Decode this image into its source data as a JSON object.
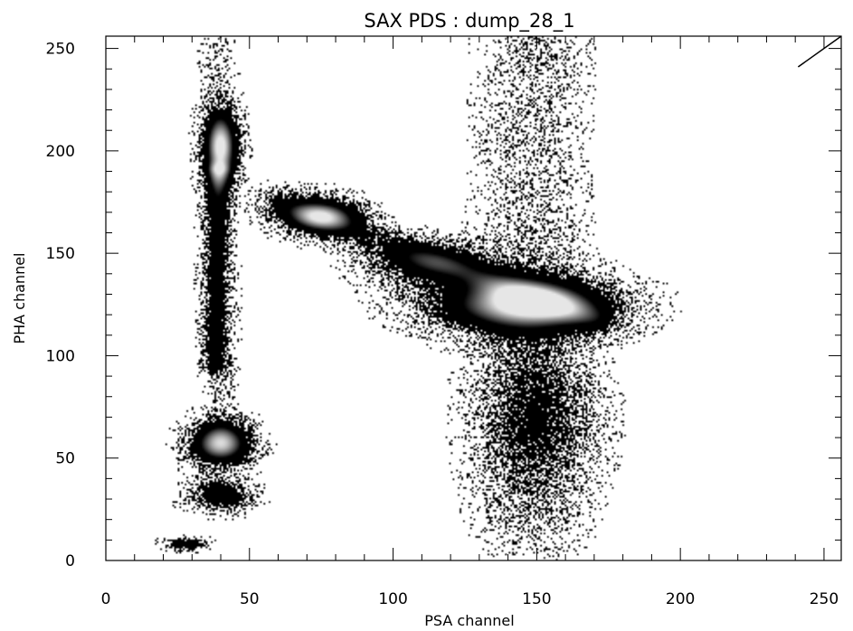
{
  "chart_data": {
    "type": "heatmap",
    "title": "SAX PDS : dump_28_1",
    "xlabel": "PSA channel",
    "ylabel": "PHA channel",
    "xlim": [
      0,
      256
    ],
    "ylim": [
      0,
      256
    ],
    "x_ticks": [
      0,
      50,
      100,
      150,
      200,
      250
    ],
    "y_ticks": [
      0,
      50,
      100,
      150,
      200,
      250
    ],
    "x_tick_labels": [
      "0",
      "50",
      "100",
      "150",
      "200",
      "250"
    ],
    "y_tick_labels": [
      "0",
      "50",
      "100",
      "150",
      "200",
      "250"
    ],
    "grid": false,
    "colormap": "density, white (low) to black to light grey (highest)",
    "density_clusters": [
      {
        "x": 40,
        "y": 202,
        "sx": 4,
        "sy": 12,
        "peak": 1.0
      },
      {
        "x": 40,
        "y": 57,
        "sx": 7,
        "sy": 7,
        "peak": 1.0
      },
      {
        "x": 40,
        "y": 32,
        "sx": 7,
        "sy": 5,
        "peak": 0.55
      },
      {
        "x": 28,
        "y": 8,
        "sx": 5,
        "sy": 2,
        "peak": 0.55
      },
      {
        "x": 75,
        "y": 168,
        "sx": 9,
        "sy": 6,
        "peak": 0.8
      },
      {
        "x": 145,
        "y": 125,
        "sx": 20,
        "sy": 9,
        "peak": 1.0
      },
      {
        "x": 112,
        "y": 145,
        "sx": 14,
        "sy": 7,
        "peak": 0.45
      },
      {
        "x": 150,
        "y": 70,
        "sx": 13,
        "sy": 24,
        "peak": 0.3
      }
    ],
    "density_bands": [
      {
        "x1": 38,
        "y1": 95,
        "x2": 39,
        "y2": 190,
        "width": 3,
        "peak": 0.4
      },
      {
        "x1": 60,
        "y1": 175,
        "x2": 170,
        "y2": 118,
        "width": 5,
        "peak": 0.3
      },
      {
        "x1": 148,
        "y1": 20,
        "x2": 148,
        "y2": 255,
        "width": 12,
        "peak": 0.12
      },
      {
        "x1": 40,
        "y1": 65,
        "x2": 39,
        "y2": 255,
        "width": 4,
        "peak": 0.1
      }
    ],
    "reference_line": {
      "x": [
        241,
        256
      ],
      "y": [
        241,
        256
      ]
    }
  }
}
